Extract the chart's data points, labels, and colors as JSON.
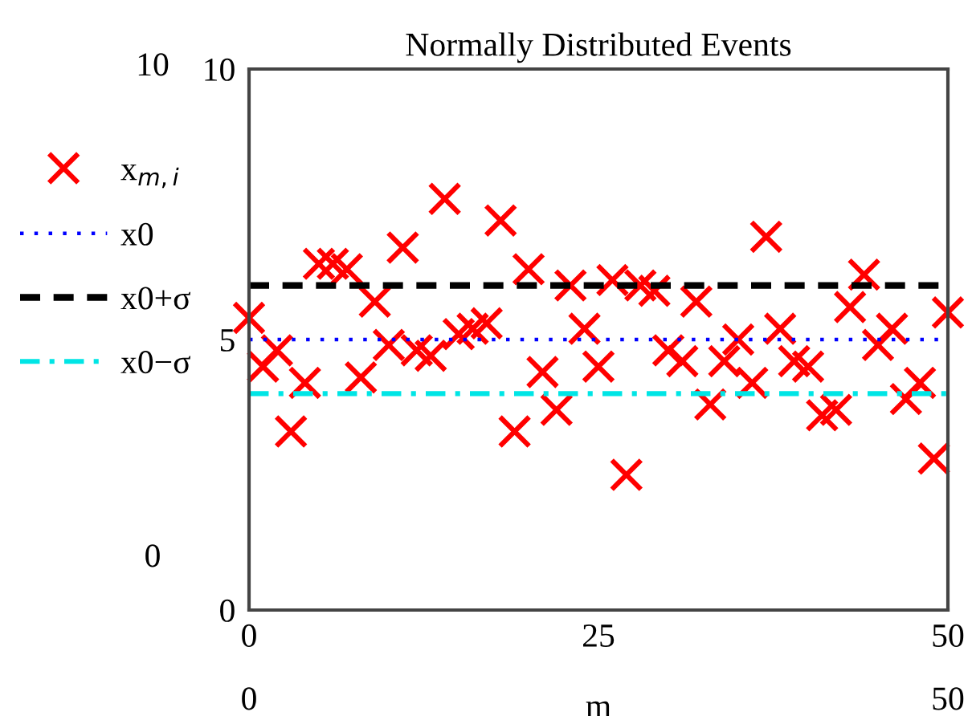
{
  "chart_data": {
    "type": "scatter",
    "title": "Normally Distributed Events",
    "xlabel": "m",
    "x": [
      0,
      1,
      2,
      3,
      4,
      5,
      6,
      7,
      8,
      9,
      10,
      11,
      12,
      13,
      14,
      15,
      16,
      17,
      18,
      19,
      20,
      21,
      22,
      23,
      24,
      25,
      26,
      27,
      28,
      29,
      30,
      31,
      32,
      33,
      34,
      35,
      36,
      37,
      38,
      39,
      40,
      41,
      42,
      43,
      44,
      45,
      46,
      47,
      48,
      49,
      50
    ],
    "series": [
      {
        "name": "x$_{m,i}$",
        "color": "#ff0000",
        "marker": "cross",
        "values": [
          5.4,
          4.5,
          4.8,
          3.3,
          4.2,
          6.4,
          6.4,
          6.3,
          4.3,
          5.7,
          4.9,
          6.7,
          4.8,
          4.7,
          7.6,
          5.1,
          5.2,
          5.3,
          7.2,
          3.3,
          6.3,
          4.4,
          3.7,
          6.0,
          5.2,
          4.5,
          6.1,
          2.5,
          6.0,
          5.9,
          4.8,
          4.6,
          5.7,
          3.8,
          4.6,
          5.0,
          4.2,
          6.9,
          5.2,
          4.6,
          4.5,
          3.6,
          3.7,
          5.6,
          6.2,
          4.9,
          5.2,
          3.9,
          4.2,
          2.8,
          5.5
        ]
      }
    ],
    "ref_lines": [
      {
        "axis": "y",
        "value": 5,
        "label": "x0",
        "color": "#0000ff",
        "line_style": "dotted"
      },
      {
        "axis": "y",
        "value": 6,
        "label": "x0+σ",
        "color": "#000000",
        "line_style": "dashed"
      },
      {
        "axis": "y",
        "value": 4,
        "label": "x0−σ",
        "color": "#00e5e5",
        "line_style": "dashdot"
      }
    ],
    "xlim": [
      0,
      50
    ],
    "xticks": [
      0,
      25,
      50
    ],
    "ylim": [
      0,
      10
    ],
    "yticks": [
      0,
      5,
      10
    ],
    "grid": false,
    "legend": "left",
    "annotations": [
      "10",
      "0",
      "0",
      "50"
    ]
  }
}
